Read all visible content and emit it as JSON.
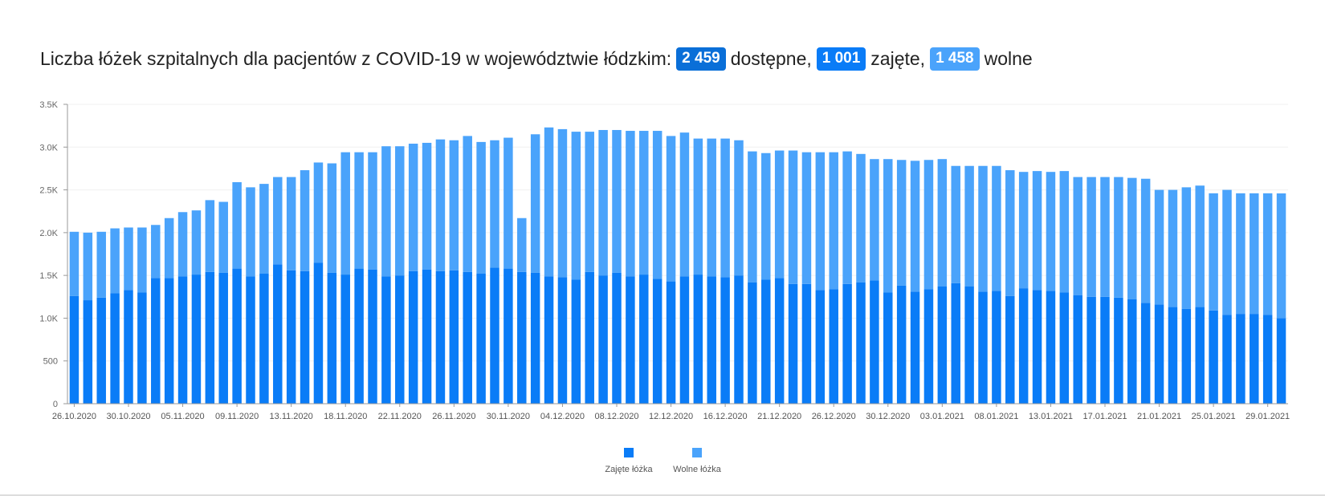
{
  "header": {
    "title_prefix": "Liczba łóżek szpitalnych dla pacjentów z COVID-19 w województwie łódzkim:",
    "available_value": "2 459",
    "available_label": "dostępne,",
    "occupied_value": "1 001",
    "occupied_label": "zajęte,",
    "free_value": "1 458",
    "free_label": "wolne"
  },
  "colors": {
    "occupied": "#0a7cf7",
    "free": "#4aa3fb",
    "badge_available": "#0a6fd8",
    "badge_occupied": "#0a7cf7",
    "badge_free": "#4aa3fb"
  },
  "chart_data": {
    "type": "bar",
    "stacked": true,
    "title": "",
    "xlabel": "",
    "ylabel": "",
    "ylim": [
      0,
      3500
    ],
    "yticks": [
      0,
      500,
      1000,
      1500,
      2000,
      2500,
      3000,
      3500
    ],
    "ytick_labels": [
      "0",
      "500",
      "1.0K",
      "1.5K",
      "2.0K",
      "2.5K",
      "3.0K",
      "3.5K"
    ],
    "grid": true,
    "legend_position": "bottom-center",
    "x_tick_labels": [
      {
        "index": 0,
        "label": "26.10.2020"
      },
      {
        "index": 4,
        "label": "30.10.2020"
      },
      {
        "index": 8,
        "label": "05.11.2020"
      },
      {
        "index": 12,
        "label": "09.11.2020"
      },
      {
        "index": 16,
        "label": "13.11.2020"
      },
      {
        "index": 20,
        "label": "18.11.2020"
      },
      {
        "index": 24,
        "label": "22.11.2020"
      },
      {
        "index": 28,
        "label": "26.11.2020"
      },
      {
        "index": 32,
        "label": "30.11.2020"
      },
      {
        "index": 36,
        "label": "04.12.2020"
      },
      {
        "index": 40,
        "label": "08.12.2020"
      },
      {
        "index": 44,
        "label": "12.12.2020"
      },
      {
        "index": 48,
        "label": "16.12.2020"
      },
      {
        "index": 52,
        "label": "21.12.2020"
      },
      {
        "index": 56,
        "label": "26.12.2020"
      },
      {
        "index": 60,
        "label": "30.12.2020"
      },
      {
        "index": 64,
        "label": "03.01.2021"
      },
      {
        "index": 68,
        "label": "08.01.2021"
      },
      {
        "index": 72,
        "label": "13.01.2021"
      },
      {
        "index": 76,
        "label": "17.01.2021"
      },
      {
        "index": 80,
        "label": "21.01.2021"
      },
      {
        "index": 84,
        "label": "25.01.2021"
      },
      {
        "index": 88,
        "label": "29.01.2021"
      }
    ],
    "series": [
      {
        "name": "Zajęte łóżka",
        "values": [
          1260,
          1210,
          1240,
          1290,
          1330,
          1300,
          1470,
          1470,
          1490,
          1510,
          1540,
          1530,
          1580,
          1490,
          1520,
          1630,
          1560,
          1550,
          1650,
          1530,
          1510,
          1580,
          1570,
          1490,
          1500,
          1550,
          1570,
          1550,
          1560,
          1540,
          1520,
          1590,
          1580,
          1540,
          1530,
          1490,
          1480,
          1450,
          1540,
          1500,
          1530,
          1490,
          1510,
          1460,
          1430,
          1490,
          1510,
          1490,
          1480,
          1500,
          1420,
          1450,
          1470,
          1400,
          1400,
          1330,
          1340,
          1400,
          1420,
          1440,
          1300,
          1380,
          1310,
          1340,
          1370,
          1410,
          1370,
          1310,
          1320,
          1260,
          1350,
          1330,
          1320,
          1300,
          1270,
          1250,
          1250,
          1240,
          1220,
          1180,
          1160,
          1130,
          1110,
          1130,
          1090,
          1040,
          1050,
          1050,
          1040,
          1001
        ]
      },
      {
        "name": "Wolne łóżka",
        "values": [
          750,
          790,
          770,
          760,
          730,
          760,
          620,
          700,
          750,
          750,
          840,
          830,
          1010,
          1040,
          1050,
          1020,
          1090,
          1180,
          1170,
          1280,
          1430,
          1360,
          1370,
          1520,
          1510,
          1490,
          1480,
          1540,
          1520,
          1590,
          1540,
          1490,
          1530,
          630,
          1620,
          1740,
          1730,
          1730,
          1640,
          1700,
          1670,
          1700,
          1680,
          1730,
          1700,
          1680,
          1590,
          1610,
          1620,
          1580,
          1530,
          1480,
          1490,
          1560,
          1540,
          1610,
          1600,
          1550,
          1500,
          1420,
          1560,
          1470,
          1530,
          1510,
          1490,
          1370,
          1410,
          1470,
          1460,
          1470,
          1360,
          1390,
          1390,
          1420,
          1380,
          1400,
          1400,
          1410,
          1420,
          1450,
          1340,
          1370,
          1420,
          1420,
          1370,
          1460,
          1410,
          1410,
          1420,
          1458
        ]
      }
    ]
  }
}
